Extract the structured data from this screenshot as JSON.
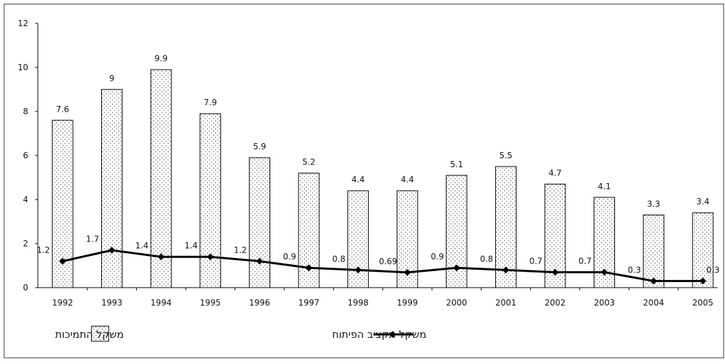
{
  "chart_data": {
    "type": "bar",
    "categories": [
      "1992",
      "1993",
      "1994",
      "1995",
      "1996",
      "1997",
      "1998",
      "1999",
      "2000",
      "2001",
      "2002",
      "2003",
      "2004",
      "2005"
    ],
    "series": [
      {
        "name": "משקל התמיכות",
        "kind": "bar",
        "values": [
          7.6,
          9,
          9.9,
          7.9,
          5.9,
          5.2,
          4.4,
          4.4,
          5.1,
          5.5,
          4.7,
          4.1,
          3.3,
          3.4
        ],
        "labels": [
          "7.6",
          "9",
          "9.9",
          "7.9",
          "5.9",
          "5.2",
          "4.4",
          "4.4",
          "5.1",
          "5.5",
          "4.7",
          "4.1",
          "3.3",
          "3.4"
        ]
      },
      {
        "name": "משקל תקציב הפיתוח",
        "kind": "line",
        "values": [
          1.2,
          1.7,
          1.4,
          1.4,
          1.2,
          0.9,
          0.8,
          0.69,
          0.9,
          0.8,
          0.7,
          0.7,
          0.3,
          0.3
        ],
        "labels": [
          "1.2",
          "1.7",
          "1.4",
          "1.4",
          "1.2",
          "0.9",
          "0.8",
          "0.69",
          "0.9",
          "0.8",
          "0.7",
          "0.7",
          "0.3",
          "0.3"
        ]
      }
    ],
    "yticks": [
      "0",
      "2",
      "4",
      "6",
      "8",
      "10",
      "12"
    ],
    "ylim": [
      0,
      12
    ],
    "grid": false,
    "legend_position": "bottom",
    "title": "",
    "xlabel": "",
    "ylabel": ""
  }
}
